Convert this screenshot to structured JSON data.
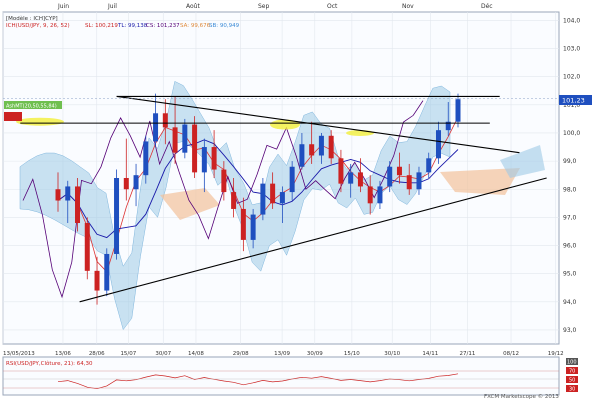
{
  "header": {
    "months": [
      "Juin",
      "Juil",
      "Août",
      "Sep",
      "Oct",
      "Nov",
      "Déc"
    ],
    "modele_label": "[Modèle : ICH]CYP]",
    "ichimoku_label": "ICH(USD/JPY, 9, 26, 52)",
    "sl_label": "SL: 100,219",
    "tl_label": "TL: 99,138",
    "cs_label": "CS: 101,237",
    "sa_label": "SA: 99,676",
    "sb_label": "SB: 90,949",
    "price_tag": "101,23",
    "green_tag": "AshMT(20,50,55,84)"
  },
  "rsi": {
    "label": "RSI(USD/JPY,Clôture, 21): 64,30",
    "levels": [
      "100",
      "70",
      "50",
      "30"
    ],
    "watermark": "FXCM Marketscope © 2013"
  },
  "colors": {
    "up": "#1f4fbf",
    "down": "#cc2222",
    "tenkan": "#dd3333",
    "kijun": "#1a1aaa",
    "chikou": "#550077",
    "cloud_bull": "#9ecae6",
    "cloud_bear": "#f2c29b",
    "trend": "#000000"
  },
  "chart_data": {
    "type": "candlestick",
    "title": "USD/JPY",
    "x_ticks": [
      "13/05/2013",
      "13/06",
      "28/06",
      "15/07",
      "30/07",
      "14/08",
      "29/08",
      "13/09",
      "30/09",
      "15/10",
      "30/10",
      "14/11",
      "27/11",
      "08/12",
      "19/12"
    ],
    "y_ticks": [
      93,
      94,
      95,
      96,
      97,
      98,
      99,
      100,
      101,
      102,
      103,
      104
    ],
    "ylim": [
      92.5,
      104.3
    ],
    "last_price": 101.23,
    "indicators": {
      "ichimoku": {
        "tenkan": 100.219,
        "kijun": 99.138,
        "chikou": 101.237,
        "senkou_a": 99.676,
        "senkou_b": 90.949
      }
    },
    "trendlines": [
      {
        "name": "support",
        "points": [
          [
            "2013-06-13",
            94.0
          ],
          [
            "2013-12-19",
            98.4
          ]
        ]
      },
      {
        "name": "descending",
        "points": [
          [
            "2013-06-28",
            101.3
          ],
          [
            "2013-12-08",
            99.3
          ]
        ]
      },
      {
        "name": "resistance-high",
        "points": [
          [
            "2013-06-28",
            101.3
          ],
          [
            "2013-11-30",
            101.3
          ]
        ]
      },
      {
        "name": "resistance-low",
        "points": [
          [
            "2013-05-20",
            100.35
          ],
          [
            "2013-11-26",
            100.35
          ]
        ]
      }
    ],
    "ohlc": [
      {
        "o": 98.0,
        "h": 98.6,
        "l": 97.2,
        "c": 97.6
      },
      {
        "o": 97.6,
        "h": 98.3,
        "l": 96.8,
        "c": 98.1
      },
      {
        "o": 98.1,
        "h": 98.4,
        "l": 96.5,
        "c": 96.8
      },
      {
        "o": 96.8,
        "h": 97.0,
        "l": 94.8,
        "c": 95.1
      },
      {
        "o": 95.1,
        "h": 95.6,
        "l": 93.9,
        "c": 94.4
      },
      {
        "o": 94.4,
        "h": 95.9,
        "l": 94.2,
        "c": 95.7
      },
      {
        "o": 95.7,
        "h": 98.7,
        "l": 95.5,
        "c": 98.4
      },
      {
        "o": 98.4,
        "h": 99.8,
        "l": 97.6,
        "c": 98.0
      },
      {
        "o": 98.0,
        "h": 98.9,
        "l": 97.4,
        "c": 98.5
      },
      {
        "o": 98.5,
        "h": 99.9,
        "l": 98.2,
        "c": 99.7
      },
      {
        "o": 99.7,
        "h": 101.4,
        "l": 99.5,
        "c": 100.7
      },
      {
        "o": 100.7,
        "h": 101.2,
        "l": 99.6,
        "c": 100.2
      },
      {
        "o": 100.2,
        "h": 101.3,
        "l": 98.9,
        "c": 99.3
      },
      {
        "o": 99.3,
        "h": 100.5,
        "l": 99.1,
        "c": 100.3
      },
      {
        "o": 100.3,
        "h": 100.6,
        "l": 98.4,
        "c": 98.6
      },
      {
        "o": 98.6,
        "h": 99.8,
        "l": 97.9,
        "c": 99.5
      },
      {
        "o": 99.5,
        "h": 100.1,
        "l": 98.4,
        "c": 98.7
      },
      {
        "o": 98.7,
        "h": 99.0,
        "l": 97.6,
        "c": 97.9
      },
      {
        "o": 97.9,
        "h": 98.4,
        "l": 97.0,
        "c": 97.3
      },
      {
        "o": 97.3,
        "h": 97.7,
        "l": 95.8,
        "c": 96.2
      },
      {
        "o": 96.2,
        "h": 97.3,
        "l": 95.9,
        "c": 97.1
      },
      {
        "o": 97.1,
        "h": 98.4,
        "l": 96.9,
        "c": 98.2
      },
      {
        "o": 98.2,
        "h": 98.6,
        "l": 97.3,
        "c": 97.5
      },
      {
        "o": 97.5,
        "h": 98.1,
        "l": 96.8,
        "c": 97.9
      },
      {
        "o": 97.9,
        "h": 99.0,
        "l": 97.6,
        "c": 98.8
      },
      {
        "o": 98.8,
        "h": 100.0,
        "l": 98.7,
        "c": 99.6
      },
      {
        "o": 99.6,
        "h": 100.4,
        "l": 98.9,
        "c": 99.2
      },
      {
        "o": 99.2,
        "h": 100.0,
        "l": 98.9,
        "c": 99.9
      },
      {
        "o": 99.9,
        "h": 100.1,
        "l": 98.9,
        "c": 99.1
      },
      {
        "o": 99.1,
        "h": 99.4,
        "l": 97.9,
        "c": 98.2
      },
      {
        "o": 98.2,
        "h": 98.9,
        "l": 97.7,
        "c": 98.6
      },
      {
        "o": 98.6,
        "h": 99.1,
        "l": 97.9,
        "c": 98.1
      },
      {
        "o": 98.1,
        "h": 98.5,
        "l": 97.1,
        "c": 97.5
      },
      {
        "o": 97.5,
        "h": 98.3,
        "l": 97.3,
        "c": 98.1
      },
      {
        "o": 98.1,
        "h": 99.0,
        "l": 97.9,
        "c": 98.8
      },
      {
        "o": 98.8,
        "h": 99.3,
        "l": 98.2,
        "c": 98.5
      },
      {
        "o": 98.5,
        "h": 98.9,
        "l": 97.8,
        "c": 98.0
      },
      {
        "o": 98.0,
        "h": 98.8,
        "l": 97.8,
        "c": 98.6
      },
      {
        "o": 98.6,
        "h": 99.3,
        "l": 98.4,
        "c": 99.1
      },
      {
        "o": 99.1,
        "h": 100.4,
        "l": 98.9,
        "c": 100.1
      },
      {
        "o": 100.1,
        "h": 101.1,
        "l": 99.9,
        "c": 100.4
      },
      {
        "o": 100.4,
        "h": 101.4,
        "l": 100.2,
        "c": 101.2
      }
    ]
  }
}
